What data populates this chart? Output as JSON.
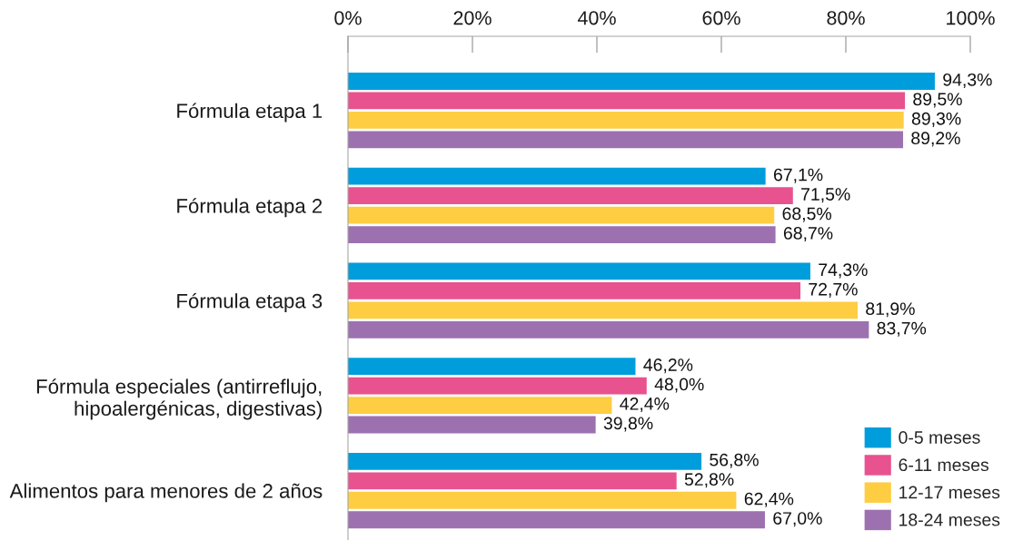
{
  "chart_data": {
    "type": "bar",
    "orientation": "horizontal",
    "categories": [
      "Fórmula etapa 1",
      "Fórmula etapa 2",
      "Fórmula etapa 3",
      "Fórmula especiales (antirreflujo,\nhipoalergénicas, digestivas)",
      "Alimentos para menores de 2 años"
    ],
    "series": [
      {
        "name": "0-5 meses",
        "color": "#009ddc",
        "values": [
          94.3,
          67.1,
          74.3,
          46.2,
          56.8
        ],
        "value_labels": [
          "94,3%",
          "67,1%",
          "74,3%",
          "46,2%",
          "56,8%"
        ]
      },
      {
        "name": "6-11 meses",
        "color": "#e8528f",
        "values": [
          89.5,
          71.5,
          72.7,
          48.0,
          52.8
        ],
        "value_labels": [
          "89,5%",
          "71,5%",
          "72,7%",
          "48,0%",
          "52,8%"
        ]
      },
      {
        "name": "12-17 meses",
        "color": "#fecd42",
        "values": [
          89.3,
          68.5,
          81.9,
          42.4,
          62.4
        ],
        "value_labels": [
          "89,3%",
          "68,5%",
          "81,9%",
          "42,4%",
          "62,4%"
        ]
      },
      {
        "name": "18-24 meses",
        "color": "#9d71b0",
        "values": [
          89.2,
          68.7,
          83.7,
          39.8,
          67.0
        ],
        "value_labels": [
          "89,2%",
          "68,7%",
          "83,7%",
          "39,8%",
          "67,0%"
        ]
      }
    ],
    "xlim": [
      0,
      100
    ],
    "xticks": [
      {
        "value": 0,
        "label": "0%"
      },
      {
        "value": 20,
        "label": "20%"
      },
      {
        "value": 40,
        "label": "40%"
      },
      {
        "value": 60,
        "label": "60%"
      },
      {
        "value": 80,
        "label": "80%"
      },
      {
        "value": 100,
        "label": "100%"
      }
    ],
    "legend": "bottom right"
  }
}
